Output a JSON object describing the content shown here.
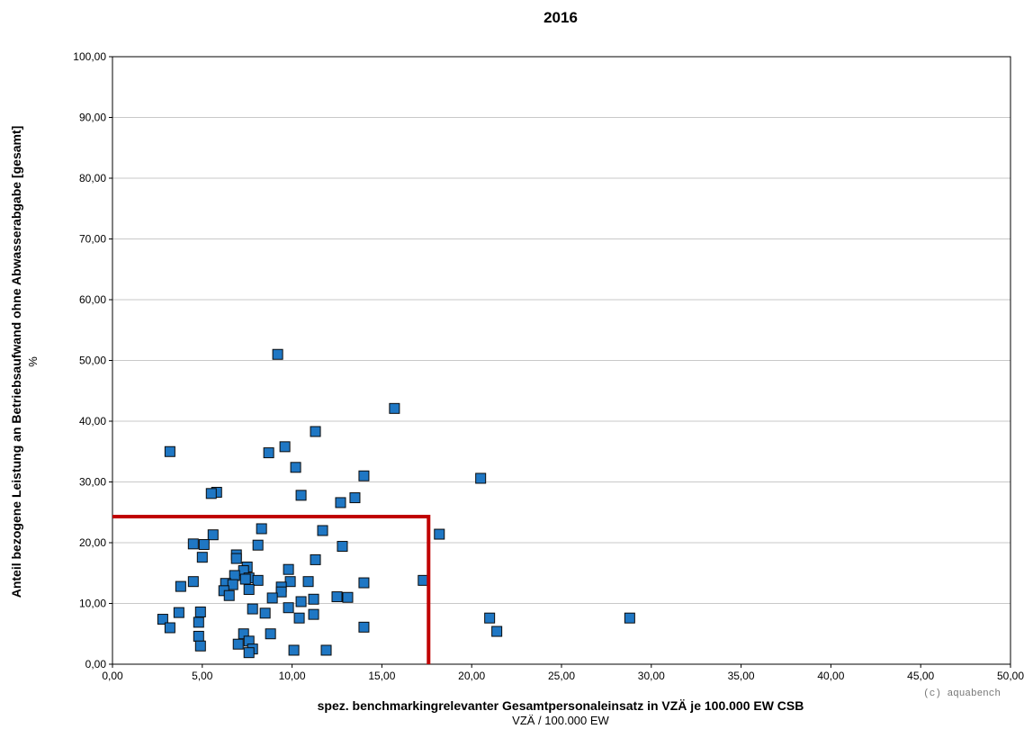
{
  "chart_data": {
    "type": "scatter",
    "title": "2016",
    "xlabel": "spez. benchmarkingrelevanter Gesamtpersonaleinsatz in VZÄ je 100.000 EW CSB",
    "xunit": "VZÄ / 100.000 EW",
    "ylabel": "Anteil bezogene Leistung an Betriebsaufwand ohne Abwasserabgabe [gesamt]",
    "yunit": "%",
    "xlim": [
      0,
      50
    ],
    "ylim": [
      0,
      100
    ],
    "x_ticks": [
      "0,00",
      "5,00",
      "10,00",
      "15,00",
      "20,00",
      "25,00",
      "30,00",
      "35,00",
      "40,00",
      "45,00",
      "50,00"
    ],
    "y_ticks": [
      "0,00",
      "10,00",
      "20,00",
      "30,00",
      "40,00",
      "50,00",
      "60,00",
      "70,00",
      "80,00",
      "90,00",
      "100,00"
    ],
    "grid": true,
    "marker_color": "#1f77c4",
    "reference_line_color": "#c00000",
    "reference_line": {
      "x": 17.6,
      "y": 24.3
    },
    "credit": "(c) aquabench",
    "points": [
      [
        9.2,
        51.0
      ],
      [
        15.7,
        42.1
      ],
      [
        11.3,
        38.3
      ],
      [
        3.2,
        35.0
      ],
      [
        9.6,
        35.8
      ],
      [
        8.7,
        34.8
      ],
      [
        10.2,
        32.4
      ],
      [
        14.0,
        31.0
      ],
      [
        20.5,
        30.6
      ],
      [
        5.8,
        28.3
      ],
      [
        5.5,
        28.1
      ],
      [
        10.5,
        27.8
      ],
      [
        13.5,
        27.4
      ],
      [
        12.7,
        26.6
      ],
      [
        8.3,
        22.3
      ],
      [
        11.7,
        22.0
      ],
      [
        18.2,
        21.4
      ],
      [
        5.6,
        21.3
      ],
      [
        4.5,
        19.8
      ],
      [
        5.1,
        19.7
      ],
      [
        8.1,
        19.6
      ],
      [
        12.8,
        19.4
      ],
      [
        6.9,
        18.0
      ],
      [
        5.0,
        17.6
      ],
      [
        6.9,
        17.4
      ],
      [
        11.3,
        17.2
      ],
      [
        7.5,
        16.0
      ],
      [
        9.8,
        15.6
      ],
      [
        7.3,
        15.4
      ],
      [
        6.8,
        14.6
      ],
      [
        7.6,
        14.2
      ],
      [
        7.4,
        14.0
      ],
      [
        4.5,
        13.6
      ],
      [
        8.1,
        13.8
      ],
      [
        9.9,
        13.6
      ],
      [
        10.9,
        13.6
      ],
      [
        14.0,
        13.4
      ],
      [
        17.3,
        13.8
      ],
      [
        6.3,
        13.3
      ],
      [
        6.7,
        13.1
      ],
      [
        3.8,
        12.8
      ],
      [
        9.4,
        12.7
      ],
      [
        6.2,
        12.1
      ],
      [
        7.6,
        12.3
      ],
      [
        9.4,
        11.9
      ],
      [
        6.5,
        11.3
      ],
      [
        12.5,
        11.1
      ],
      [
        13.1,
        11.0
      ],
      [
        8.9,
        10.9
      ],
      [
        11.2,
        10.7
      ],
      [
        10.5,
        10.3
      ],
      [
        9.8,
        9.3
      ],
      [
        7.8,
        9.1
      ],
      [
        3.7,
        8.5
      ],
      [
        4.9,
        8.6
      ],
      [
        8.5,
        8.4
      ],
      [
        11.2,
        8.2
      ],
      [
        2.8,
        7.4
      ],
      [
        10.4,
        7.6
      ],
      [
        21.0,
        7.6
      ],
      [
        28.8,
        7.6
      ],
      [
        4.8,
        6.9
      ],
      [
        3.2,
        6.0
      ],
      [
        14.0,
        6.1
      ],
      [
        21.4,
        5.4
      ],
      [
        7.3,
        5.0
      ],
      [
        8.8,
        5.0
      ],
      [
        4.8,
        4.6
      ],
      [
        7.6,
        3.8
      ],
      [
        4.9,
        3.0
      ],
      [
        7.0,
        3.3
      ],
      [
        7.8,
        2.5
      ],
      [
        7.6,
        1.9
      ],
      [
        10.1,
        2.3
      ],
      [
        11.9,
        2.3
      ]
    ]
  }
}
